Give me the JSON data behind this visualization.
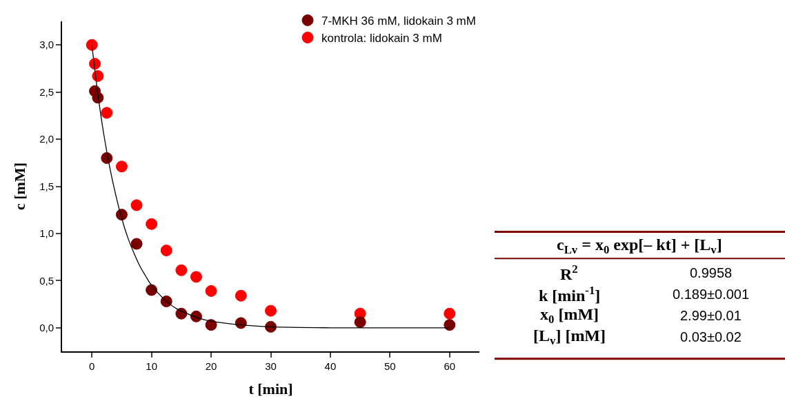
{
  "chart_data": {
    "type": "scatter",
    "xlabel": "t [min]",
    "ylabel": "c [mM]",
    "xlim": [
      -5,
      65
    ],
    "xticks": [
      0,
      10,
      20,
      30,
      40,
      50,
      60
    ],
    "ylim": [
      -0.25,
      3.25
    ],
    "yticks": [
      {
        "value": 0,
        "label": "0,0"
      },
      {
        "value": 0.5,
        "label": "0,5"
      },
      {
        "value": 1,
        "label": "1,0"
      },
      {
        "value": 1.5,
        "label": "1,5"
      },
      {
        "value": 2,
        "label": "2,0"
      },
      {
        "value": 2.5,
        "label": "2,5"
      },
      {
        "value": 3,
        "label": "3,0"
      }
    ],
    "legend": "top right",
    "marker": "circle",
    "series": [
      {
        "name": "kontrola: lidokain 3 mM",
        "color": "#ff0000",
        "x": [
          0,
          0.5,
          1,
          2.5,
          5,
          7.5,
          10,
          12.5,
          15,
          17.5,
          20,
          25,
          30,
          45,
          60
        ],
        "values": [
          3.0,
          2.8,
          2.67,
          2.28,
          1.71,
          1.3,
          1.1,
          0.82,
          0.61,
          0.54,
          0.39,
          0.34,
          0.18,
          0.15,
          0.15
        ]
      },
      {
        "name": "7-MKH 36 mM, lidokain 3 mM",
        "color": "#7a0000",
        "x": [
          0.5,
          1,
          2.5,
          5,
          7.5,
          10,
          12.5,
          15,
          17.5,
          20,
          25,
          30,
          45,
          60
        ],
        "values": [
          2.51,
          2.44,
          1.8,
          1.2,
          0.89,
          0.4,
          0.28,
          0.15,
          0.12,
          0.03,
          0.05,
          0.01,
          0.06,
          0.03
        ]
      },
      {
        "type": "line",
        "color": "#000000",
        "marker": "none",
        "line_style": "solid",
        "x": [
          0,
          1,
          2,
          3,
          4,
          5,
          6,
          7,
          8,
          9,
          10,
          12,
          14,
          16,
          18,
          20,
          25,
          30,
          40,
          60
        ],
        "values": [
          3.0,
          2.48,
          2.05,
          1.7,
          1.41,
          1.16,
          0.96,
          0.8,
          0.66,
          0.55,
          0.45,
          0.31,
          0.21,
          0.15,
          0.1,
          0.07,
          0.03,
          0.01,
          0.0,
          0.0
        ]
      }
    ],
    "annotations": [
      "c$_{Lv}$ = x$_{0}$ exp[– kt] + [L$_{v}$]",
      "R$^{2}$",
      "0.9958",
      "k [min$^{-1}$]",
      "0.189±0.001",
      "x$_{0}$ [mM]",
      "2.99±0.01",
      "[L$_{v}$] [mM]",
      "0.03±0.02"
    ]
  }
}
